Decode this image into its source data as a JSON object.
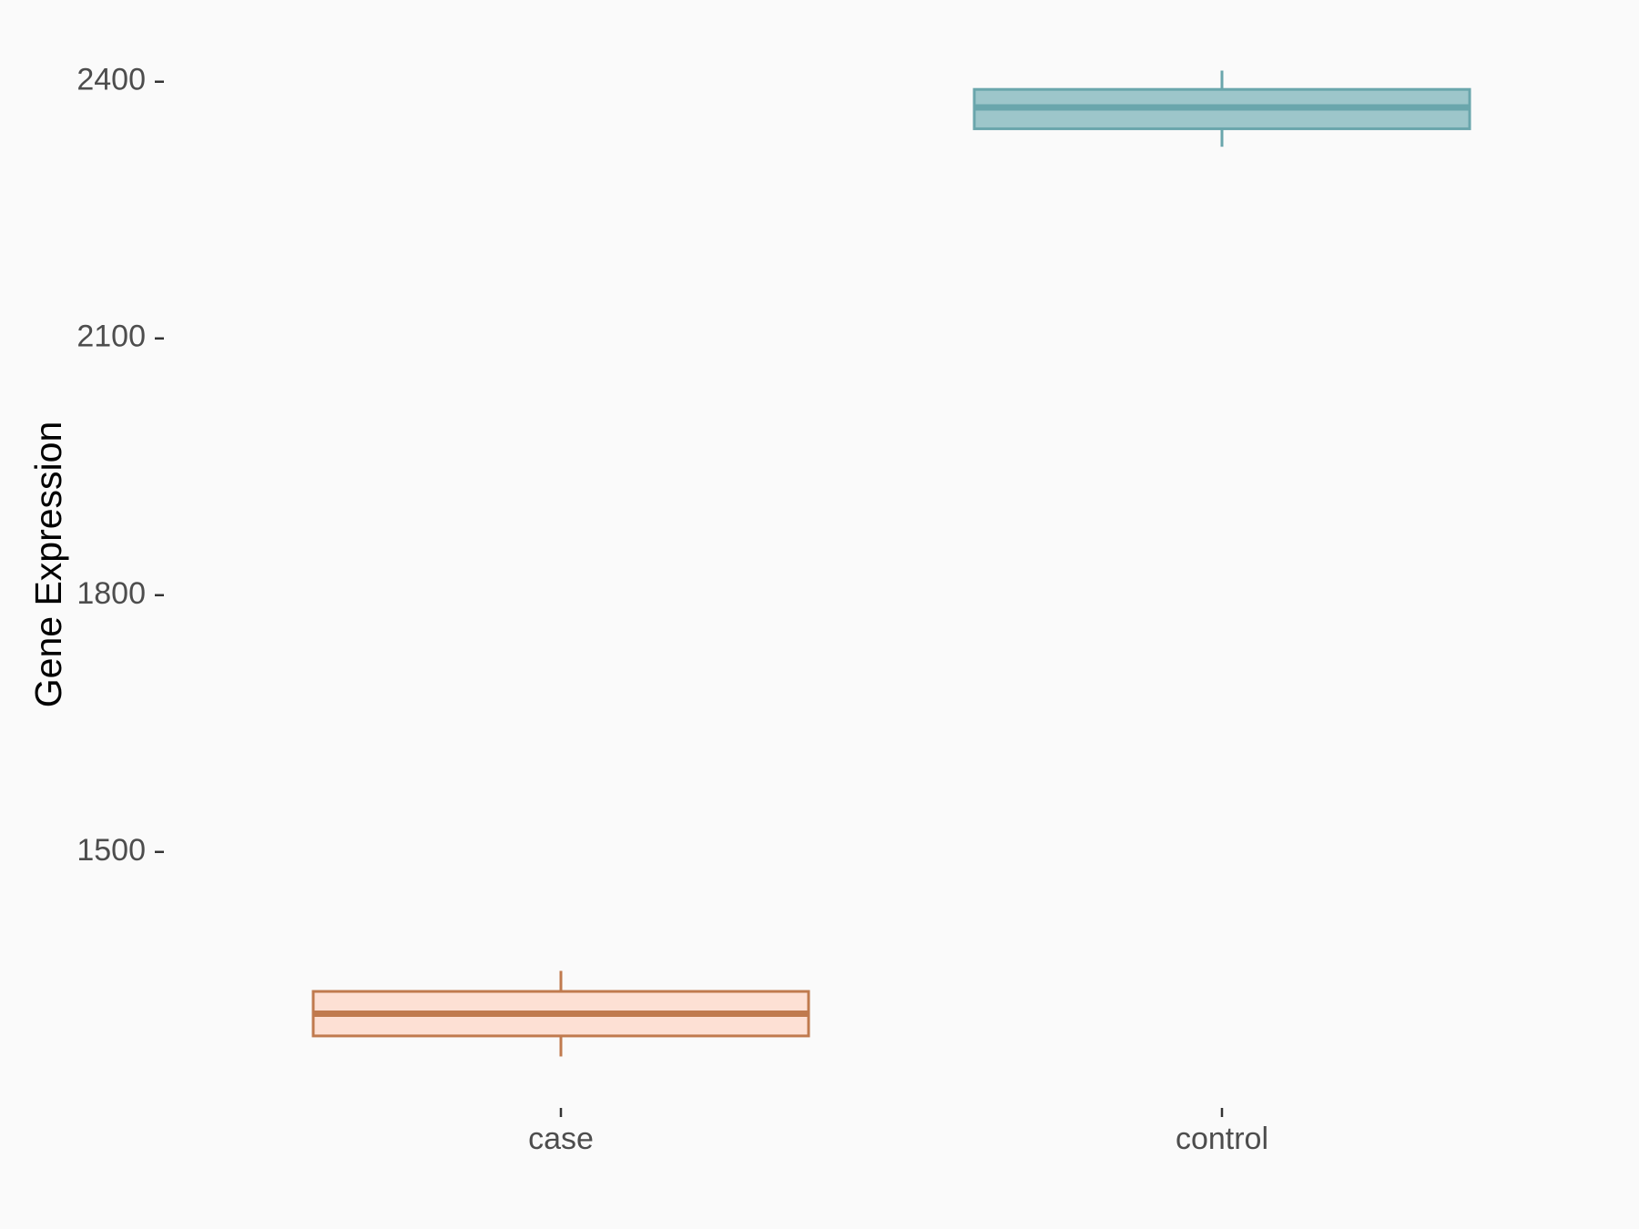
{
  "chart_data": {
    "type": "box",
    "y_label": "Gene Expression",
    "categories": [
      "case",
      "control"
    ],
    "min": [
      1261,
      2324
    ],
    "q1": [
      1285,
      2345
    ],
    "median": [
      1311,
      2370
    ],
    "q3": [
      1337,
      2391
    ],
    "max": [
      1361,
      2413
    ],
    "stroke_colors": [
      "#c07a4e",
      "#6aa6ac"
    ],
    "fill_colors": [
      "#fde0d4",
      "#9dc6ca"
    ],
    "ylim": [
      1203,
      2471
    ],
    "yticks": [
      1500,
      1800,
      2100,
      2400
    ],
    "grid": false
  }
}
